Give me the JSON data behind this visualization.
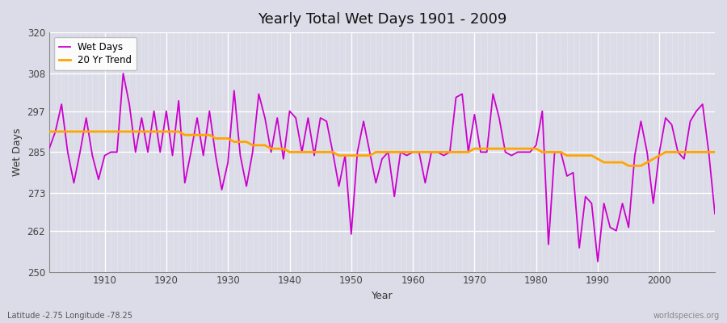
{
  "title": "Yearly Total Wet Days 1901 - 2009",
  "xlabel": "Year",
  "ylabel": "Wet Days",
  "footnote_left": "Latitude -2.75 Longitude -78.25",
  "footnote_right": "worldspecies.org",
  "wet_days_color": "#cc00cc",
  "trend_color": "#ffa500",
  "background_color": "#dcdce8",
  "plot_bg_color": "#dcdce8",
  "grid_color": "#ffffff",
  "ylim": [
    250,
    320
  ],
  "yticks": [
    250,
    262,
    273,
    285,
    297,
    308,
    320
  ],
  "xlim": [
    1901,
    2009
  ],
  "xticks": [
    1910,
    1920,
    1930,
    1940,
    1950,
    1960,
    1970,
    1980,
    1990,
    2000
  ],
  "years": [
    1901,
    1902,
    1903,
    1904,
    1905,
    1906,
    1907,
    1908,
    1909,
    1910,
    1911,
    1912,
    1913,
    1914,
    1915,
    1916,
    1917,
    1918,
    1919,
    1920,
    1921,
    1922,
    1923,
    1924,
    1925,
    1926,
    1927,
    1928,
    1929,
    1930,
    1931,
    1932,
    1933,
    1934,
    1935,
    1936,
    1937,
    1938,
    1939,
    1940,
    1941,
    1942,
    1943,
    1944,
    1945,
    1946,
    1947,
    1948,
    1949,
    1950,
    1951,
    1952,
    1953,
    1954,
    1955,
    1956,
    1957,
    1958,
    1959,
    1960,
    1961,
    1962,
    1963,
    1964,
    1965,
    1966,
    1967,
    1968,
    1969,
    1970,
    1971,
    1972,
    1973,
    1974,
    1975,
    1976,
    1977,
    1978,
    1979,
    1980,
    1981,
    1982,
    1983,
    1984,
    1985,
    1986,
    1987,
    1988,
    1989,
    1990,
    1991,
    1992,
    1993,
    1994,
    1995,
    1996,
    1997,
    1998,
    1999,
    2000,
    2001,
    2002,
    2003,
    2004,
    2005,
    2006,
    2007,
    2008,
    2009
  ],
  "wet_days": [
    286,
    291,
    299,
    285,
    276,
    285,
    295,
    284,
    277,
    284,
    285,
    285,
    308,
    299,
    285,
    295,
    285,
    297,
    285,
    297,
    284,
    300,
    276,
    285,
    295,
    284,
    297,
    284,
    274,
    282,
    303,
    284,
    275,
    285,
    302,
    295,
    285,
    295,
    283,
    297,
    295,
    285,
    295,
    284,
    295,
    294,
    285,
    275,
    284,
    261,
    285,
    294,
    285,
    276,
    283,
    285,
    272,
    285,
    284,
    285,
    285,
    276,
    285,
    285,
    284,
    285,
    301,
    302,
    285,
    296,
    285,
    285,
    302,
    295,
    285,
    284,
    285,
    285,
    285,
    287,
    297,
    258,
    285,
    285,
    278,
    279,
    257,
    272,
    270,
    253,
    270,
    263,
    262,
    270,
    263,
    284,
    294,
    285,
    270,
    285,
    295,
    293,
    285,
    283,
    294,
    297,
    299,
    285,
    267
  ],
  "trend": [
    291,
    291,
    291,
    291,
    291,
    291,
    291,
    291,
    291,
    291,
    291,
    291,
    291,
    291,
    291,
    291,
    291,
    291,
    291,
    291,
    291,
    291,
    290,
    290,
    290,
    290,
    290,
    289,
    289,
    289,
    288,
    288,
    288,
    287,
    287,
    287,
    286,
    286,
    286,
    285,
    285,
    285,
    285,
    285,
    285,
    285,
    285,
    284,
    284,
    284,
    284,
    284,
    284,
    285,
    285,
    285,
    285,
    285,
    285,
    285,
    285,
    285,
    285,
    285,
    285,
    285,
    285,
    285,
    285,
    286,
    286,
    286,
    286,
    286,
    286,
    286,
    286,
    286,
    286,
    286,
    285,
    285,
    285,
    285,
    284,
    284,
    284,
    284,
    284,
    283,
    282,
    282,
    282,
    282,
    281,
    281,
    281,
    282,
    283,
    284,
    285,
    285,
    285,
    285,
    285,
    285,
    285,
    285,
    285
  ]
}
